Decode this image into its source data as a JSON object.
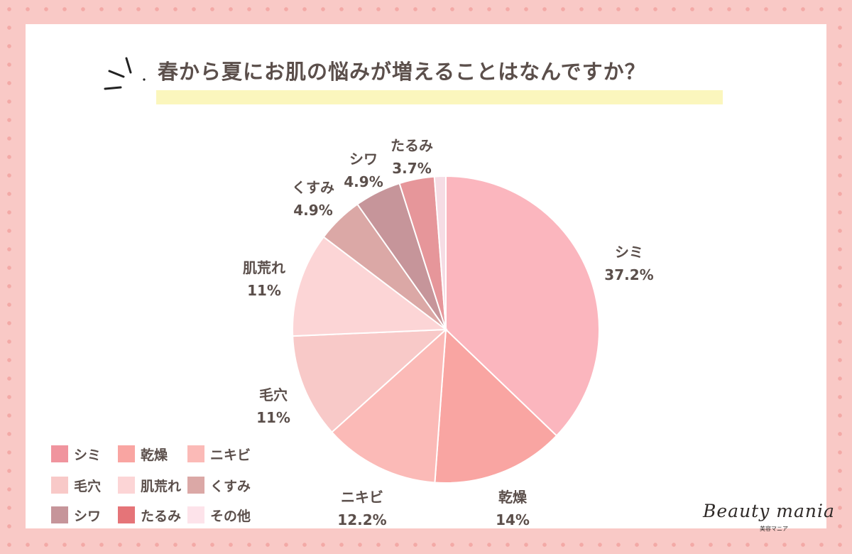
{
  "title": "春から夏にお肌の悩みが増えることはなんですか？",
  "brand": {
    "name": "Beauty mania",
    "sub": "美容マニア"
  },
  "chart_data": {
    "type": "pie",
    "title": "春から夏にお肌の悩みが増えることはなんですか？",
    "slices": [
      {
        "name": "シミ",
        "value": 37.2,
        "label": "37.2%",
        "color": "#fbb6be"
      },
      {
        "name": "乾燥",
        "value": 14,
        "label": "14%",
        "color": "#f9a5a2"
      },
      {
        "name": "ニキビ",
        "value": 12.2,
        "label": "12.2%",
        "color": "#fbbab7"
      },
      {
        "name": "毛穴",
        "value": 11,
        "label": "11%",
        "color": "#f8c9c8"
      },
      {
        "name": "肌荒れ",
        "value": 11,
        "label": "11%",
        "color": "#fcd5d6"
      },
      {
        "name": "くすみ",
        "value": 4.9,
        "label": "4.9%",
        "color": "#dba8a6"
      },
      {
        "name": "シワ",
        "value": 4.9,
        "label": "4.9%",
        "color": "#c6959a"
      },
      {
        "name": "たるみ",
        "value": 3.7,
        "label": "3.7%",
        "color": "#e6969a"
      },
      {
        "name": "その他",
        "value": 1.2,
        "label": "",
        "color": "#f6dce4"
      }
    ],
    "legend": {
      "placement": "bottom-left",
      "items": [
        {
          "name": "シミ",
          "color": "#f0949e"
        },
        {
          "name": "乾燥",
          "color": "#f9a5a2"
        },
        {
          "name": "ニキビ",
          "color": "#fbbab7"
        },
        {
          "name": "毛穴",
          "color": "#f8c9c8"
        },
        {
          "name": "肌荒れ",
          "color": "#fcd5d6"
        },
        {
          "name": "くすみ",
          "color": "#dba8a6"
        },
        {
          "name": "シワ",
          "color": "#c6959a"
        },
        {
          "name": "たるみ",
          "color": "#e57478"
        },
        {
          "name": "その他",
          "color": "#fde3ea"
        }
      ]
    }
  }
}
